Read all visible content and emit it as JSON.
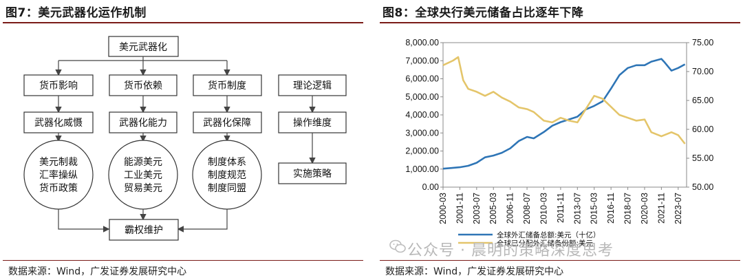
{
  "left_panel": {
    "title": "图7：美元武器化运作机制",
    "source": "数据来源：Wind，广发证券发展研究中心",
    "diagram": {
      "root": "美元武器化",
      "col1": [
        "货币影响",
        "武器化威慑"
      ],
      "col2": [
        "货币依赖",
        "武器化能力"
      ],
      "col3": [
        "货币制度",
        "武器化保障"
      ],
      "col4": [
        "理论逻辑",
        "操作维度",
        "实施策略"
      ],
      "circle1": [
        "美元制裁",
        "汇率操纵",
        "货币政策"
      ],
      "circle2": [
        "能源美元",
        "工业美元",
        "贸易美元"
      ],
      "circle3": [
        "制度体系",
        "制度规范",
        "制度同盟"
      ],
      "bottom": "霸权维护"
    }
  },
  "right_panel": {
    "title": "图8：全球央行美元储备占比逐年下降",
    "source": "数据来源：Wind，广发证券发展研究中心",
    "watermark": "公众号 · 晨明的策略深度思考"
  },
  "chart_data": {
    "type": "line",
    "title": "全球央行美元储备占比逐年下降",
    "x_tick_labels": [
      "2000-03",
      "2001-11",
      "2003-07",
      "2005-03",
      "2006-11",
      "2008-07",
      "2010-03",
      "2011-11",
      "2013-07",
      "2015-03",
      "2016-11",
      "2018-07",
      "2020-03",
      "2021-11",
      "2023-07"
    ],
    "y_left": {
      "ticks": [
        "0.00",
        "1,000.00",
        "2,000.00",
        "3,000.00",
        "4,000.00",
        "5,000.00",
        "6,000.00",
        "7,000.00",
        "8,000.00"
      ],
      "range": [
        0,
        8000
      ]
    },
    "y_right": {
      "ticks": [
        "50.00",
        "55.00",
        "60.00",
        "65.00",
        "70.00",
        "75.00"
      ],
      "range": [
        50,
        75
      ]
    },
    "colors": {
      "series1": "#2e75b6",
      "series2": "#e4c56a"
    },
    "legend_position": "bottom",
    "series": [
      {
        "name": "全球外汇储备总额:美元（十亿）",
        "axis": "left",
        "points": [
          [
            "2000-03",
            1020
          ],
          [
            "2001-01",
            1060
          ],
          [
            "2001-11",
            1100
          ],
          [
            "2002-09",
            1180
          ],
          [
            "2003-07",
            1350
          ],
          [
            "2004-05",
            1650
          ],
          [
            "2005-03",
            1750
          ],
          [
            "2006-01",
            1900
          ],
          [
            "2006-11",
            2150
          ],
          [
            "2007-09",
            2550
          ],
          [
            "2008-07",
            2780
          ],
          [
            "2009-03",
            2700
          ],
          [
            "2010-03",
            3050
          ],
          [
            "2011-01",
            3400
          ],
          [
            "2011-11",
            3600
          ],
          [
            "2012-09",
            3750
          ],
          [
            "2013-07",
            3900
          ],
          [
            "2014-05",
            4300
          ],
          [
            "2015-03",
            4500
          ],
          [
            "2016-01",
            4750
          ],
          [
            "2016-11",
            5450
          ],
          [
            "2017-09",
            6200
          ],
          [
            "2018-07",
            6600
          ],
          [
            "2019-05",
            6750
          ],
          [
            "2020-03",
            6750
          ],
          [
            "2020-11",
            6950
          ],
          [
            "2021-11",
            7100
          ],
          [
            "2022-03",
            6900
          ],
          [
            "2022-11",
            6450
          ],
          [
            "2023-07",
            6600
          ],
          [
            "2024-03",
            6800
          ]
        ]
      },
      {
        "name": "全球已分配外汇储备份额:美元",
        "axis": "right",
        "points": [
          [
            "2000-03",
            71.1
          ],
          [
            "2000-09",
            71.5
          ],
          [
            "2001-03",
            71.9
          ],
          [
            "2001-09",
            72.5
          ],
          [
            "2002-03",
            68.5
          ],
          [
            "2002-09",
            67.0
          ],
          [
            "2003-07",
            66.5
          ],
          [
            "2004-05",
            65.8
          ],
          [
            "2005-03",
            66.5
          ],
          [
            "2006-01",
            65.5
          ],
          [
            "2006-11",
            64.8
          ],
          [
            "2007-09",
            63.8
          ],
          [
            "2008-07",
            63.5
          ],
          [
            "2009-03",
            63.0
          ],
          [
            "2010-03",
            61.5
          ],
          [
            "2011-01",
            61.2
          ],
          [
            "2011-11",
            62.0
          ],
          [
            "2012-09",
            61.5
          ],
          [
            "2013-07",
            61.2
          ],
          [
            "2014-05",
            63.5
          ],
          [
            "2015-03",
            65.8
          ],
          [
            "2016-01",
            65.3
          ],
          [
            "2016-11",
            63.9
          ],
          [
            "2017-09",
            62.5
          ],
          [
            "2018-07",
            62.0
          ],
          [
            "2019-05",
            61.5
          ],
          [
            "2020-03",
            61.7
          ],
          [
            "2020-11",
            59.5
          ],
          [
            "2021-11",
            58.8
          ],
          [
            "2022-11",
            59.5
          ],
          [
            "2023-07",
            59.0
          ],
          [
            "2024-03",
            57.5
          ]
        ]
      }
    ]
  }
}
